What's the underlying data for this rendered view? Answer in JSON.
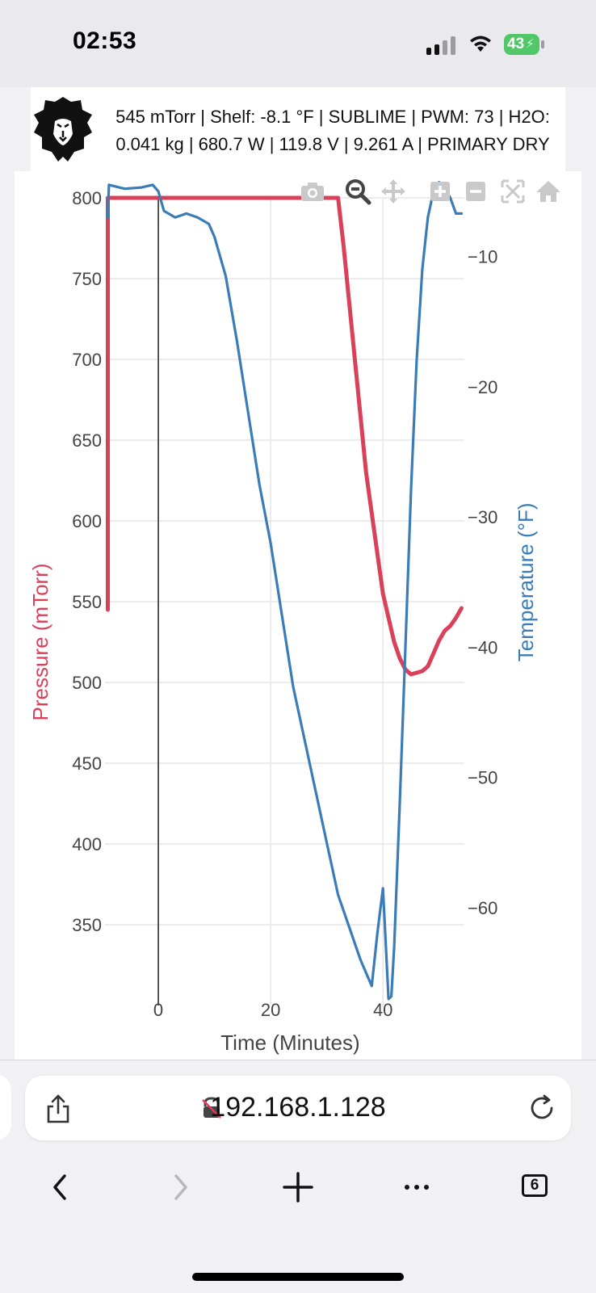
{
  "status_bar": {
    "time": "02:53",
    "battery_level": "43"
  },
  "header": {
    "logo": "lion-logo",
    "status_line1": "545 mTorr | Shelf: -8.1 °F | SUBLIME | PWM: 73 | H2O:",
    "status_line2": "0.041 kg | 680.7 W | 119.8 V | 9.261 A | PRIMARY DRY"
  },
  "modebar": {
    "icons": [
      "camera-icon",
      "zoom-icon",
      "pan-icon",
      "zoom-in-icon",
      "zoom-out-icon",
      "autoscale-icon",
      "home-icon"
    ]
  },
  "chart_data": {
    "type": "line",
    "title": "",
    "xlabel": "Time (Minutes)",
    "ylabel_left": "Pressure (mTorr)",
    "ylabel_right": "Temperature (°F)",
    "xlim": [
      -9.5,
      54.5
    ],
    "ylim_left": [
      300,
      800
    ],
    "ylim_right": [
      -67.5,
      -5.5
    ],
    "x_ticks": [
      0,
      20,
      40
    ],
    "x_tick_labels": [
      "0",
      "20",
      "40"
    ],
    "y_left_ticks": [
      350,
      400,
      450,
      500,
      550,
      600,
      650,
      700,
      750,
      800
    ],
    "y_left_tick_labels": [
      "350",
      "400",
      "450",
      "500",
      "550",
      "600",
      "650",
      "700",
      "750",
      "800"
    ],
    "y_right_ticks": [
      -60,
      -50,
      -40,
      -30,
      -20,
      -10
    ],
    "y_right_tick_labels": [
      "−60",
      "−50",
      "−40",
      "−30",
      "−20",
      "−10"
    ],
    "vertical_marker_x": 0,
    "colors": {
      "pressure": "#d9405a",
      "temperature": "#3a7cb8",
      "grid": "#e6e6e6",
      "marker": "#444444"
    },
    "series": [
      {
        "name": "Pressure (mTorr)",
        "axis": "left",
        "x": [
          -9,
          -9,
          32,
          33,
          35,
          37,
          39,
          40,
          41,
          42,
          43,
          44,
          45,
          46,
          47,
          48,
          49,
          50,
          51,
          52,
          53,
          54
        ],
        "y": [
          545,
          800,
          800,
          770,
          700,
          630,
          580,
          555,
          540,
          525,
          515,
          508,
          505,
          506,
          507,
          510,
          518,
          526,
          532,
          535,
          540,
          546
        ]
      },
      {
        "name": "Temperature (°F)",
        "axis": "right",
        "x": [
          -9,
          -8.8,
          -6,
          -3,
          -1,
          0,
          1,
          3,
          5,
          7,
          9,
          10,
          12,
          14,
          16,
          18,
          20,
          22,
          24,
          26,
          28,
          30,
          32,
          34,
          36,
          37.5,
          38,
          39,
          40,
          41,
          41.5,
          42,
          43,
          44,
          45,
          46,
          47,
          48,
          49,
          50,
          51,
          52,
          53,
          54
        ],
        "y": [
          -7,
          -4.5,
          -4.8,
          -4.7,
          -4.5,
          -5,
          -6.5,
          -7,
          -6.7,
          -7,
          -7.5,
          -8.5,
          -11.5,
          -16.5,
          -22,
          -27.5,
          -32,
          -37.5,
          -43,
          -47,
          -51,
          -55,
          -59,
          -61.5,
          -64,
          -65.5,
          -66,
          -62,
          -58.5,
          -67,
          -66.8,
          -63,
          -52,
          -40,
          -28,
          -18,
          -11,
          -7,
          -5,
          -4.3,
          -4.8,
          -5.5,
          -6.7,
          -6.7
        ]
      }
    ]
  },
  "browser": {
    "url": "192.168.1.128",
    "tabs_count": "6"
  }
}
